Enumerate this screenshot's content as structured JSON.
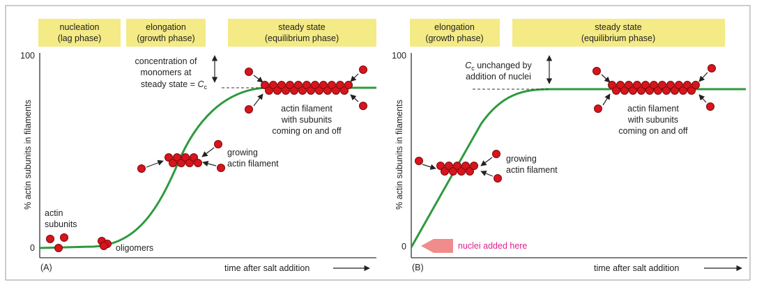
{
  "panels": [
    {
      "label": "(A)",
      "phases": [
        {
          "line1": "nucleation",
          "line2": "(lag phase)"
        },
        {
          "line1": "elongation",
          "line2": "(growth phase)"
        },
        {
          "line1": "steady state",
          "line2": "(equilibrium phase)"
        }
      ],
      "y_axis_label": "% actin subunits in filaments",
      "y_max": "100",
      "y_min": "0",
      "x_axis_label": "time after salt addition",
      "concentration_note": {
        "line1": "concentration of",
        "line2": "monomers at",
        "line3_prefix": "steady state = ",
        "symbol": "C",
        "subscript": "c"
      },
      "subunits_label": {
        "line1": "actin",
        "line2": "subunits"
      },
      "oligomers_label": "oligomers",
      "growing_label": {
        "line1": "growing",
        "line2": "actin filament"
      },
      "steady_label": {
        "line1": "actin filament",
        "line2": "with subunits",
        "line3": "coming on and off"
      }
    },
    {
      "label": "(B)",
      "phases": [
        {
          "line1": "elongation",
          "line2": "(growth phase)"
        },
        {
          "line1": "steady state",
          "line2": "(equilibrium phase)"
        }
      ],
      "y_axis_label": "% actin subunits in filaments",
      "y_max": "100",
      "y_min": "0",
      "x_axis_label": "time after salt addition",
      "cc_note": {
        "symbol": "C",
        "subscript": "c",
        "line1_suffix": " unchanged by",
        "line2": "addition of nuclei"
      },
      "growing_label": {
        "line1": "growing",
        "line2": "actin filament"
      },
      "steady_label": {
        "line1": "actin filament",
        "line2": "with subunits",
        "line3": "coming on and off"
      },
      "nuclei_label": "nuclei added here"
    }
  ]
}
